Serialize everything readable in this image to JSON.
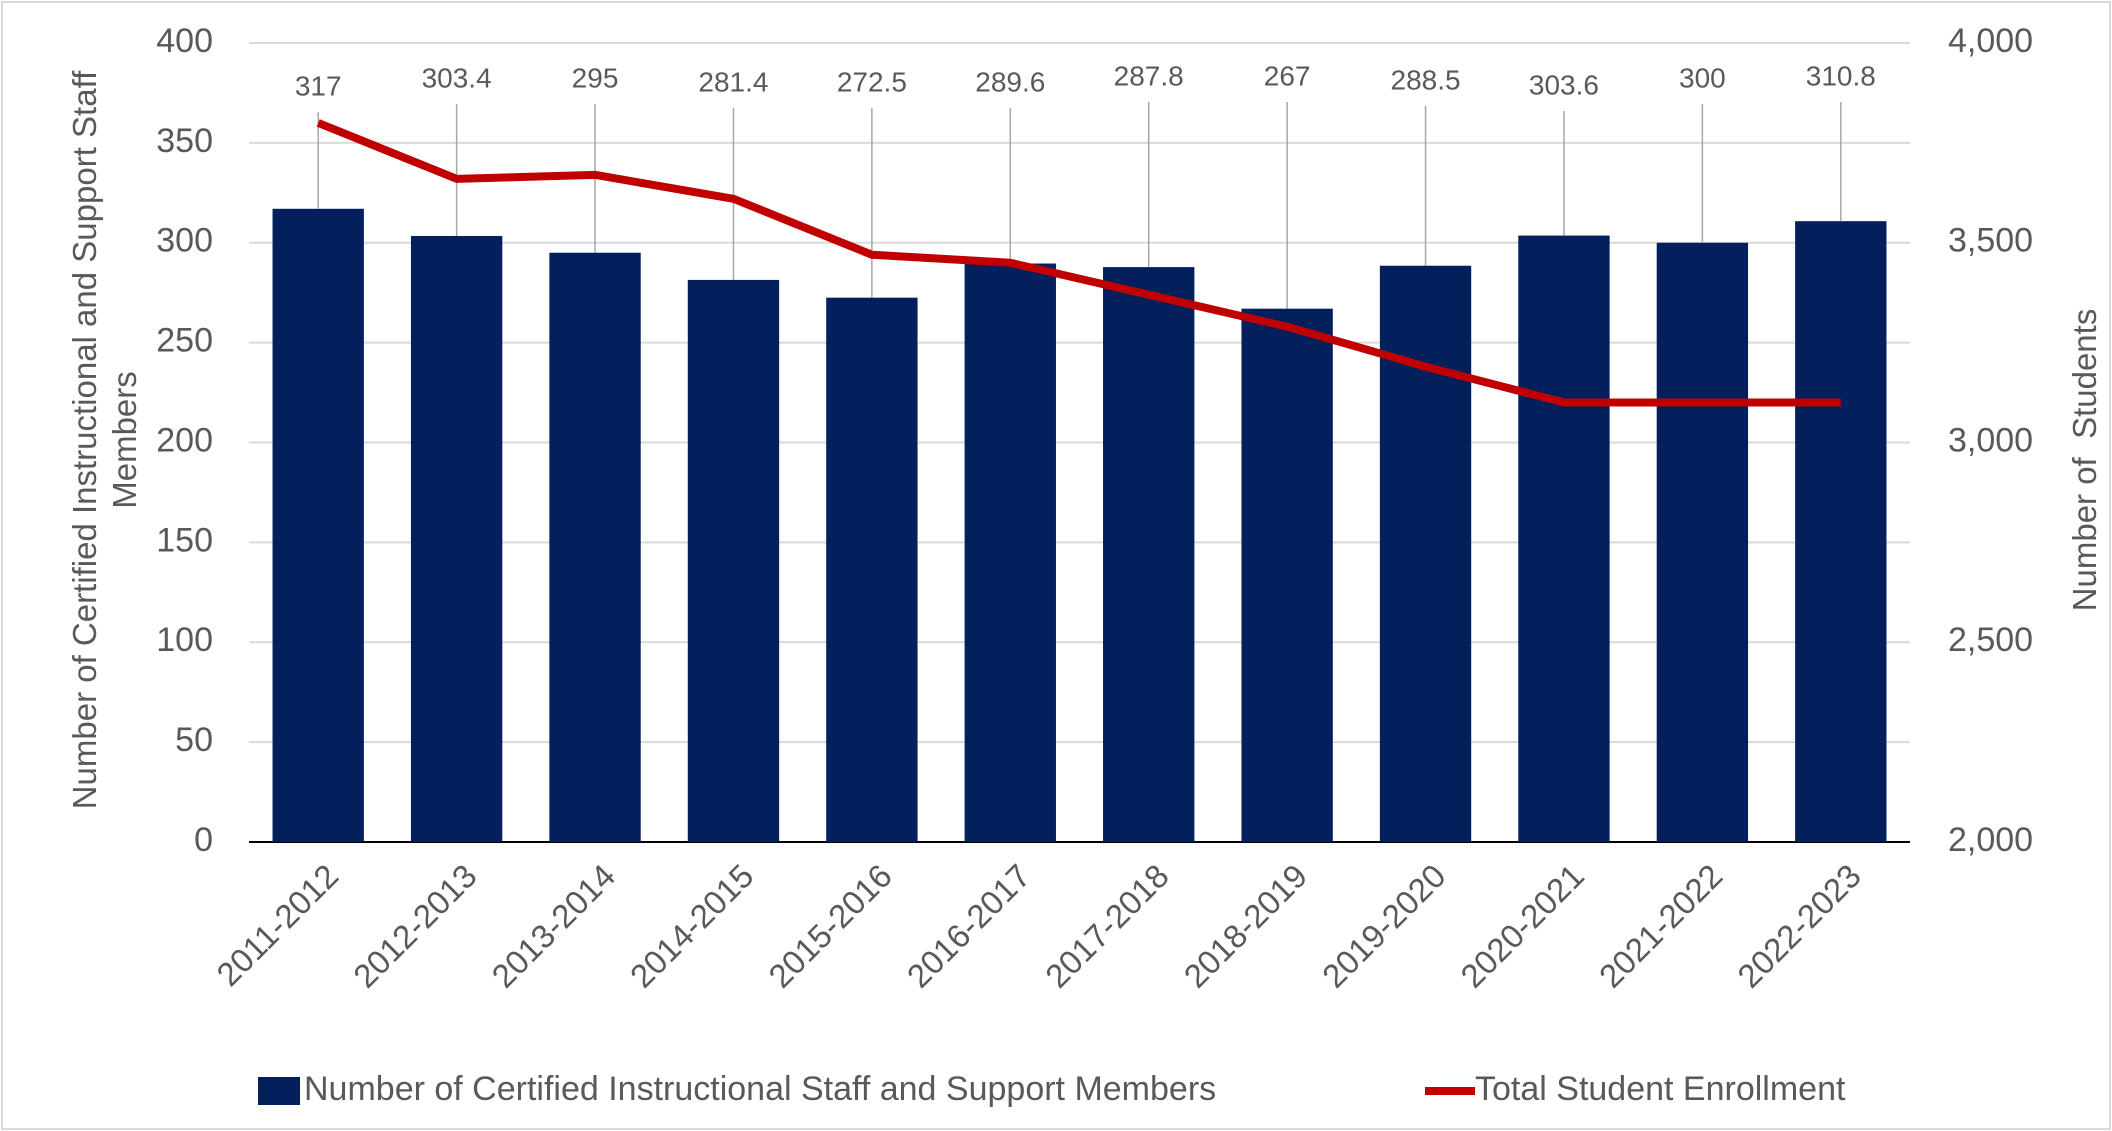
{
  "chart_data": {
    "type": "bar_line",
    "y_label": "Number of Certified Instructional and Support Staff Members",
    "y2_label": "Number of  Students",
    "categories": [
      "2011-2012",
      "2012-2013",
      "2013-2014",
      "2014-2015",
      "2015-2016",
      "2016-2017",
      "2017-2018",
      "2018-2019",
      "2019-2020",
      "2020-2021",
      "2021-2022",
      "2022-2023"
    ],
    "series": [
      {
        "name": "Number of Certified Instructional Staff and Support Members",
        "type": "bar",
        "color": "#031f5c",
        "values": [
          317,
          303.4,
          295,
          281.4,
          272.5,
          289.6,
          287.8,
          267,
          288.5,
          303.6,
          300,
          310.8
        ]
      },
      {
        "name": "Total Student Enrollment",
        "type": "line",
        "axis": "y2",
        "color": "#c00000",
        "values": [
          3800,
          3660,
          3670,
          3610,
          3470,
          3450,
          3370,
          3290,
          3190,
          3100,
          3100,
          3100
        ]
      }
    ],
    "ylim": [
      0,
      400
    ],
    "yticks": [
      0,
      50,
      100,
      150,
      200,
      250,
      300,
      350,
      400
    ],
    "y2lim": [
      2000,
      4000
    ],
    "y2ticks": [
      {
        "value": 2000,
        "label": "2,000"
      },
      {
        "value": 2500,
        "label": "2,500"
      },
      {
        "value": 3000,
        "label": "3,000"
      },
      {
        "value": 3500,
        "label": "3,500"
      },
      {
        "value": 4000,
        "label": "4,000"
      }
    ],
    "grid": true,
    "legend": "bottom"
  }
}
